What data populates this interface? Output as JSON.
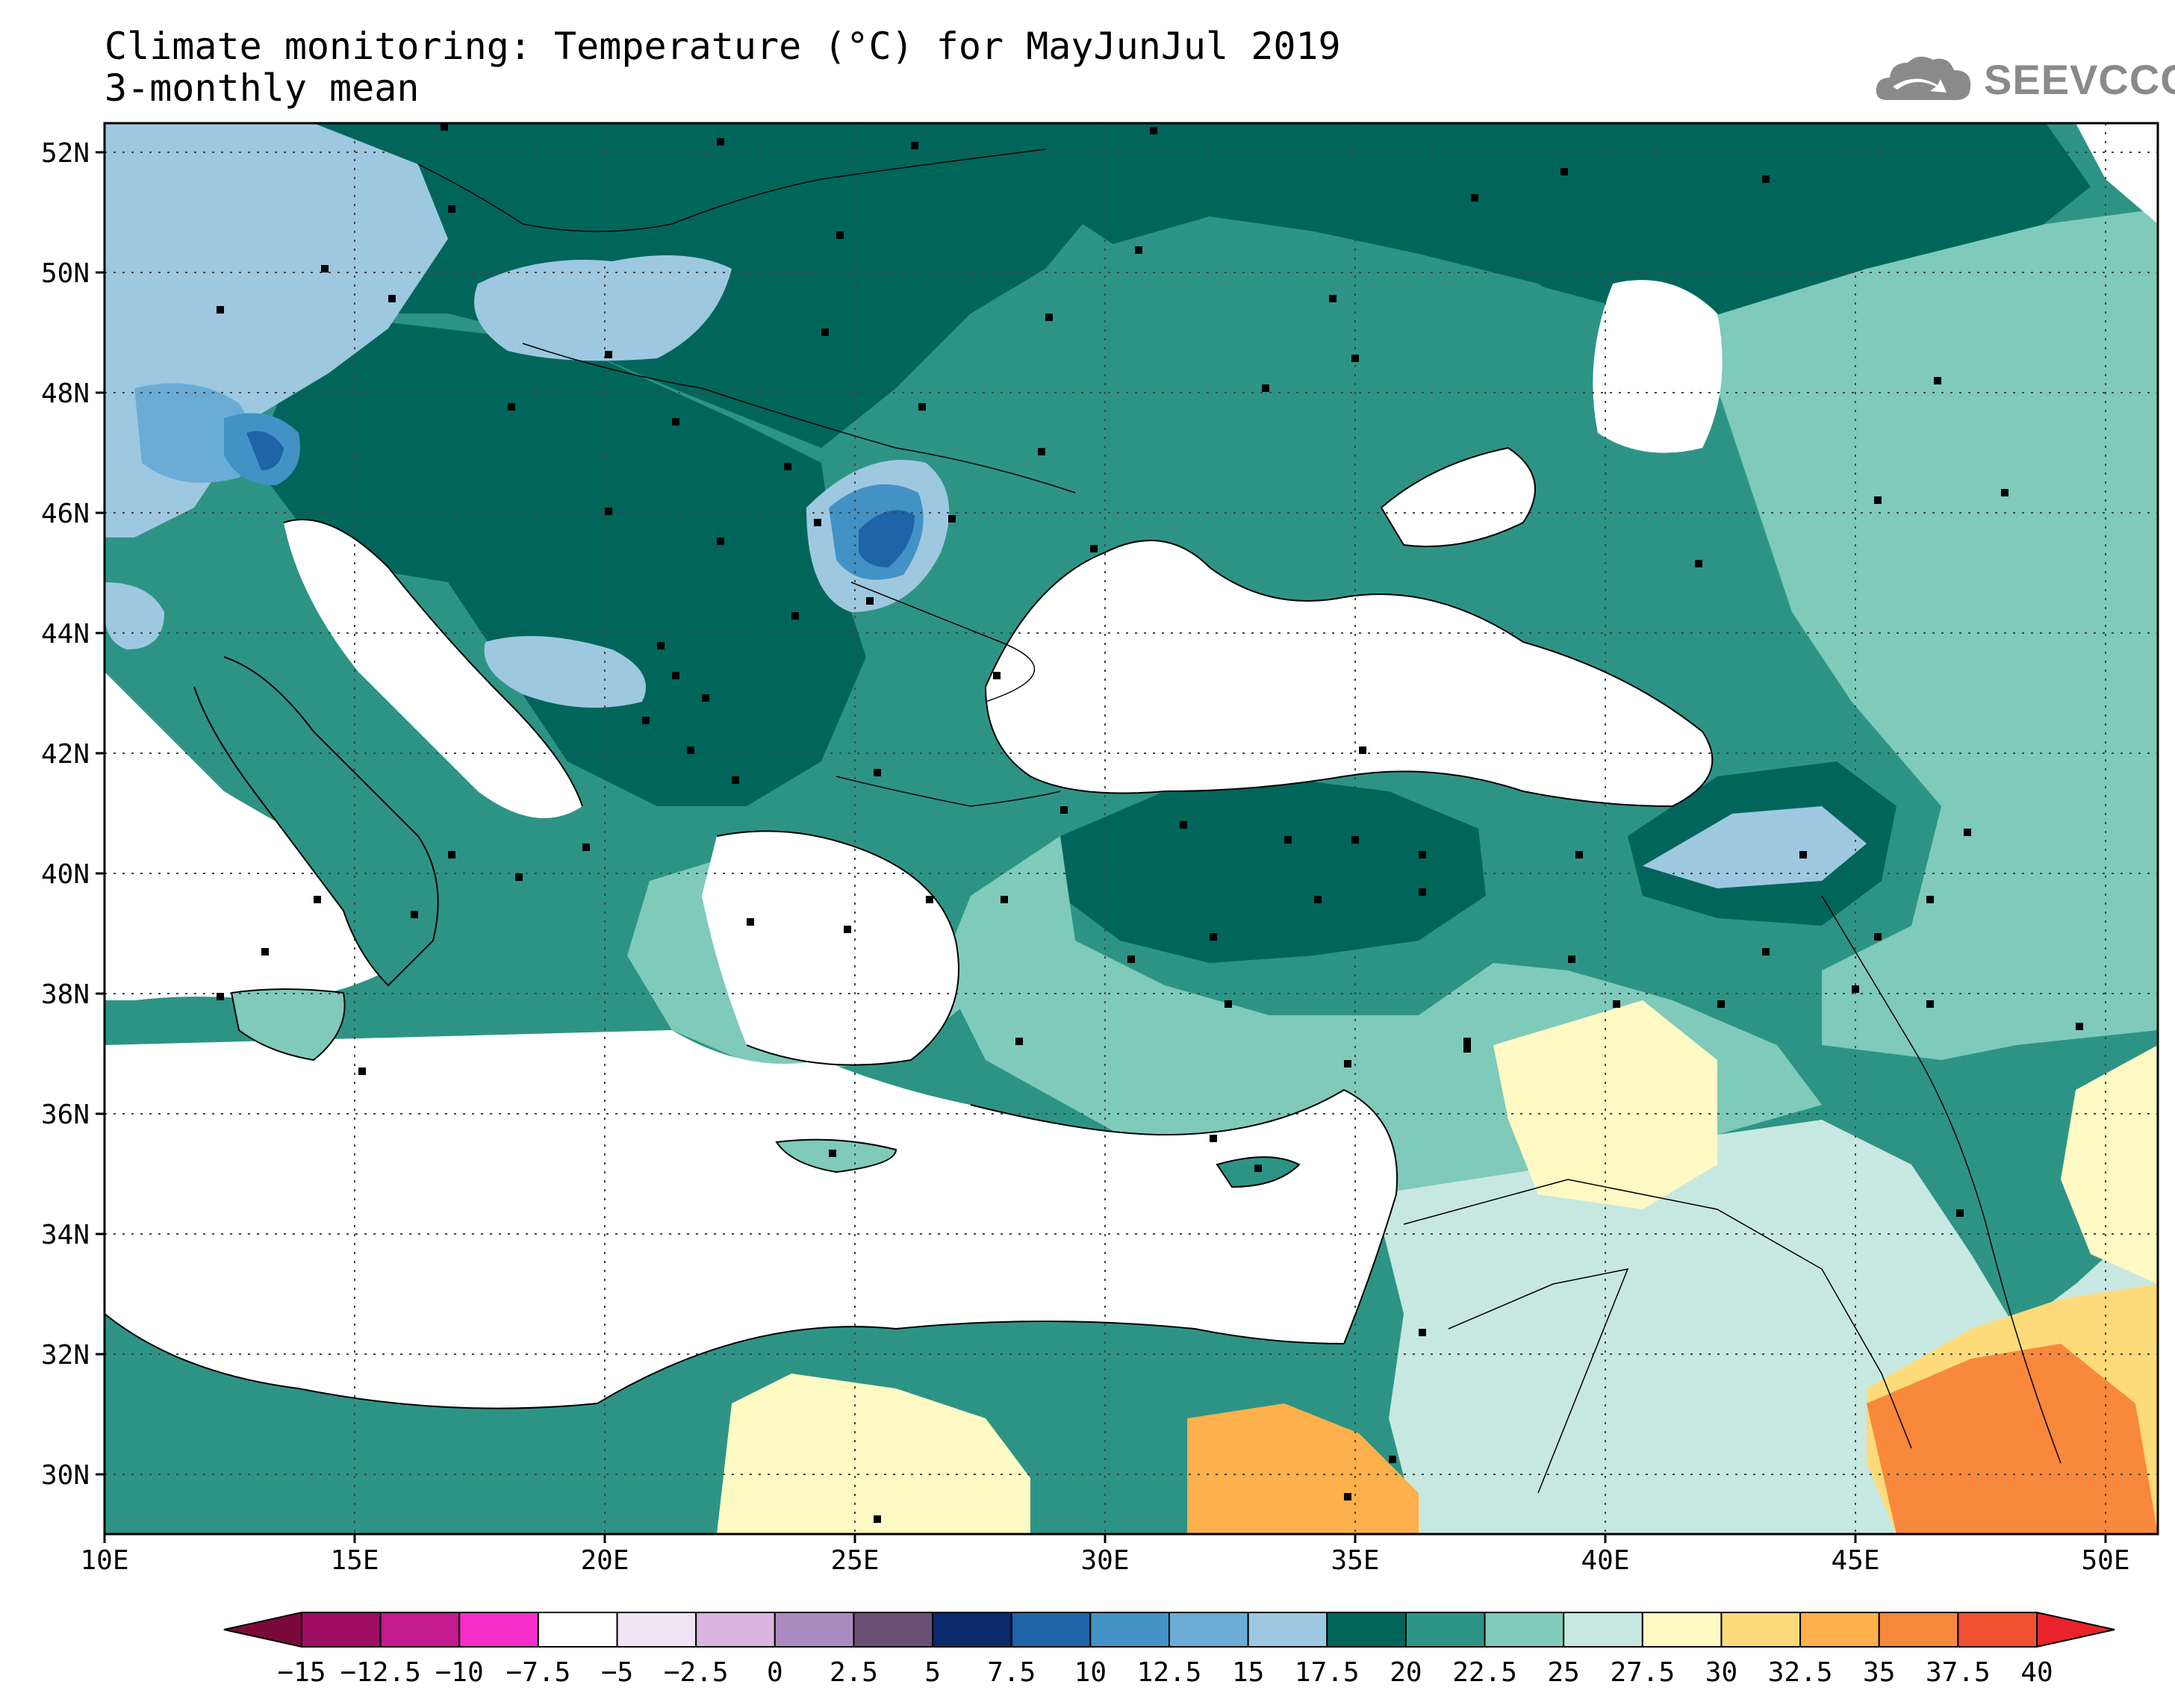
{
  "header": {
    "title_line1": "Climate monitoring: Temperature (°C) for MayJunJul 2019",
    "title_line2": "3-monthly mean"
  },
  "logo": {
    "text": "SEEVCCC"
  },
  "map": {
    "lat_ticks": [
      "52N",
      "50N",
      "48N",
      "46N",
      "44N",
      "42N",
      "40N",
      "38N",
      "36N",
      "34N",
      "32N",
      "30N"
    ],
    "lon_ticks": [
      "10E",
      "15E",
      "20E",
      "25E",
      "30E",
      "35E",
      "40E",
      "45E",
      "50E"
    ]
  },
  "colorbar": {
    "labels": [
      "-15",
      "-12.5",
      "-10",
      "-7.5",
      "-5",
      "-2.5",
      "0",
      "2.5",
      "5",
      "7.5",
      "10",
      "12.5",
      "15",
      "17.5",
      "20",
      "22.5",
      "25",
      "27.5",
      "30",
      "32.5",
      "35",
      "37.5",
      "40"
    ],
    "low_arrow_color": "#7a0a3c",
    "high_arrow_color": "#e8242a",
    "colors": [
      "#9e0d61",
      "#c41a8e",
      "#f52dc9",
      "#ffffff",
      "#f0e4f5",
      "#d9b5e0",
      "#ab8bbf",
      "#6a5075",
      "#0a2a6b",
      "#1f63a8",
      "#4292c6",
      "#6bacd6",
      "#9ec8e0",
      "#00665c",
      "#2d9485",
      "#7fcabb",
      "#c7e8e0",
      "#fff9c4",
      "#fedb7a",
      "#fdb04b",
      "#f8883c",
      "#f05030"
    ]
  }
}
